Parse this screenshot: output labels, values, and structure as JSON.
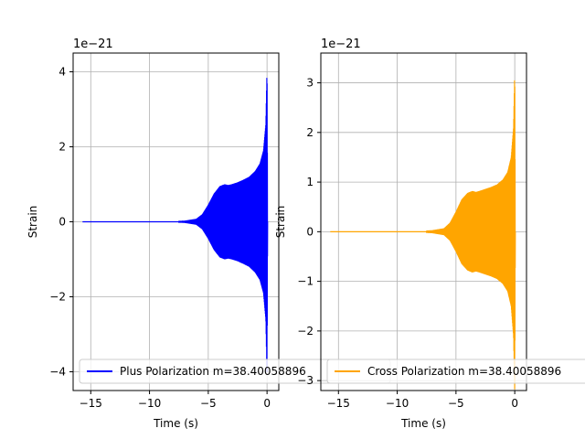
{
  "chart_data": [
    {
      "type": "line",
      "title": "",
      "xlabel": "Time (s)",
      "ylabel": "Strain",
      "scale_label": "1e−21",
      "xlim": [
        -16.5,
        1.0
      ],
      "ylim": [
        -4.5,
        4.5
      ],
      "xticks": [
        -15,
        -10,
        -5,
        0
      ],
      "xtick_labels": [
        "−15",
        "−10",
        "−5",
        "0"
      ],
      "yticks": [
        -4,
        -2,
        0,
        2,
        4
      ],
      "ytick_labels": [
        "−4",
        "−2",
        "0",
        "2",
        "4"
      ],
      "grid": true,
      "legend_position": "lower-right",
      "color": "#0000ff",
      "series": [
        {
          "name": "Plus Polarization m=38.40058896",
          "envelope": {
            "t": [
              -15.7,
              -8,
              -7,
              -6,
              -5.5,
              -5,
              -4.5,
              -4,
              -3.6,
              -3.3,
              -3,
              -2.5,
              -2,
              -1.5,
              -1,
              -0.6,
              -0.3,
              -0.1,
              0,
              0.05
            ],
            "amplitude": [
              0.02,
              0.02,
              0.03,
              0.08,
              0.2,
              0.45,
              0.75,
              0.95,
              1.0,
              0.98,
              1.0,
              1.05,
              1.12,
              1.2,
              1.35,
              1.55,
              1.9,
              2.6,
              4.1,
              0.0
            ]
          }
        }
      ]
    },
    {
      "type": "line",
      "title": "",
      "xlabel": "Time (s)",
      "ylabel": "Strain",
      "scale_label": "1e−21",
      "xlim": [
        -16.5,
        1.0
      ],
      "ylim": [
        -3.2,
        3.6
      ],
      "xticks": [
        -15,
        -10,
        -5,
        0
      ],
      "xtick_labels": [
        "−15",
        "−10",
        "−5",
        "0"
      ],
      "yticks": [
        -3,
        -2,
        -1,
        0,
        1,
        2,
        3
      ],
      "ytick_labels": [
        "−3",
        "−2",
        "−1",
        "0",
        "1",
        "2",
        "3"
      ],
      "grid": true,
      "legend_position": "lower-right",
      "color": "#ffa500",
      "series": [
        {
          "name": "Cross Polarization m=38.40058896",
          "envelope": {
            "t": [
              -15.7,
              -8,
              -7,
              -6,
              -5.5,
              -5,
              -4.5,
              -4,
              -3.6,
              -3.3,
              -3,
              -2.5,
              -2,
              -1.5,
              -1,
              -0.6,
              -0.3,
              -0.1,
              0,
              0.05
            ],
            "amplitude": [
              0.02,
              0.02,
              0.03,
              0.07,
              0.18,
              0.4,
              0.65,
              0.78,
              0.82,
              0.8,
              0.82,
              0.86,
              0.9,
              0.95,
              1.05,
              1.2,
              1.5,
              2.1,
              3.25,
              0.0
            ]
          }
        }
      ]
    }
  ]
}
